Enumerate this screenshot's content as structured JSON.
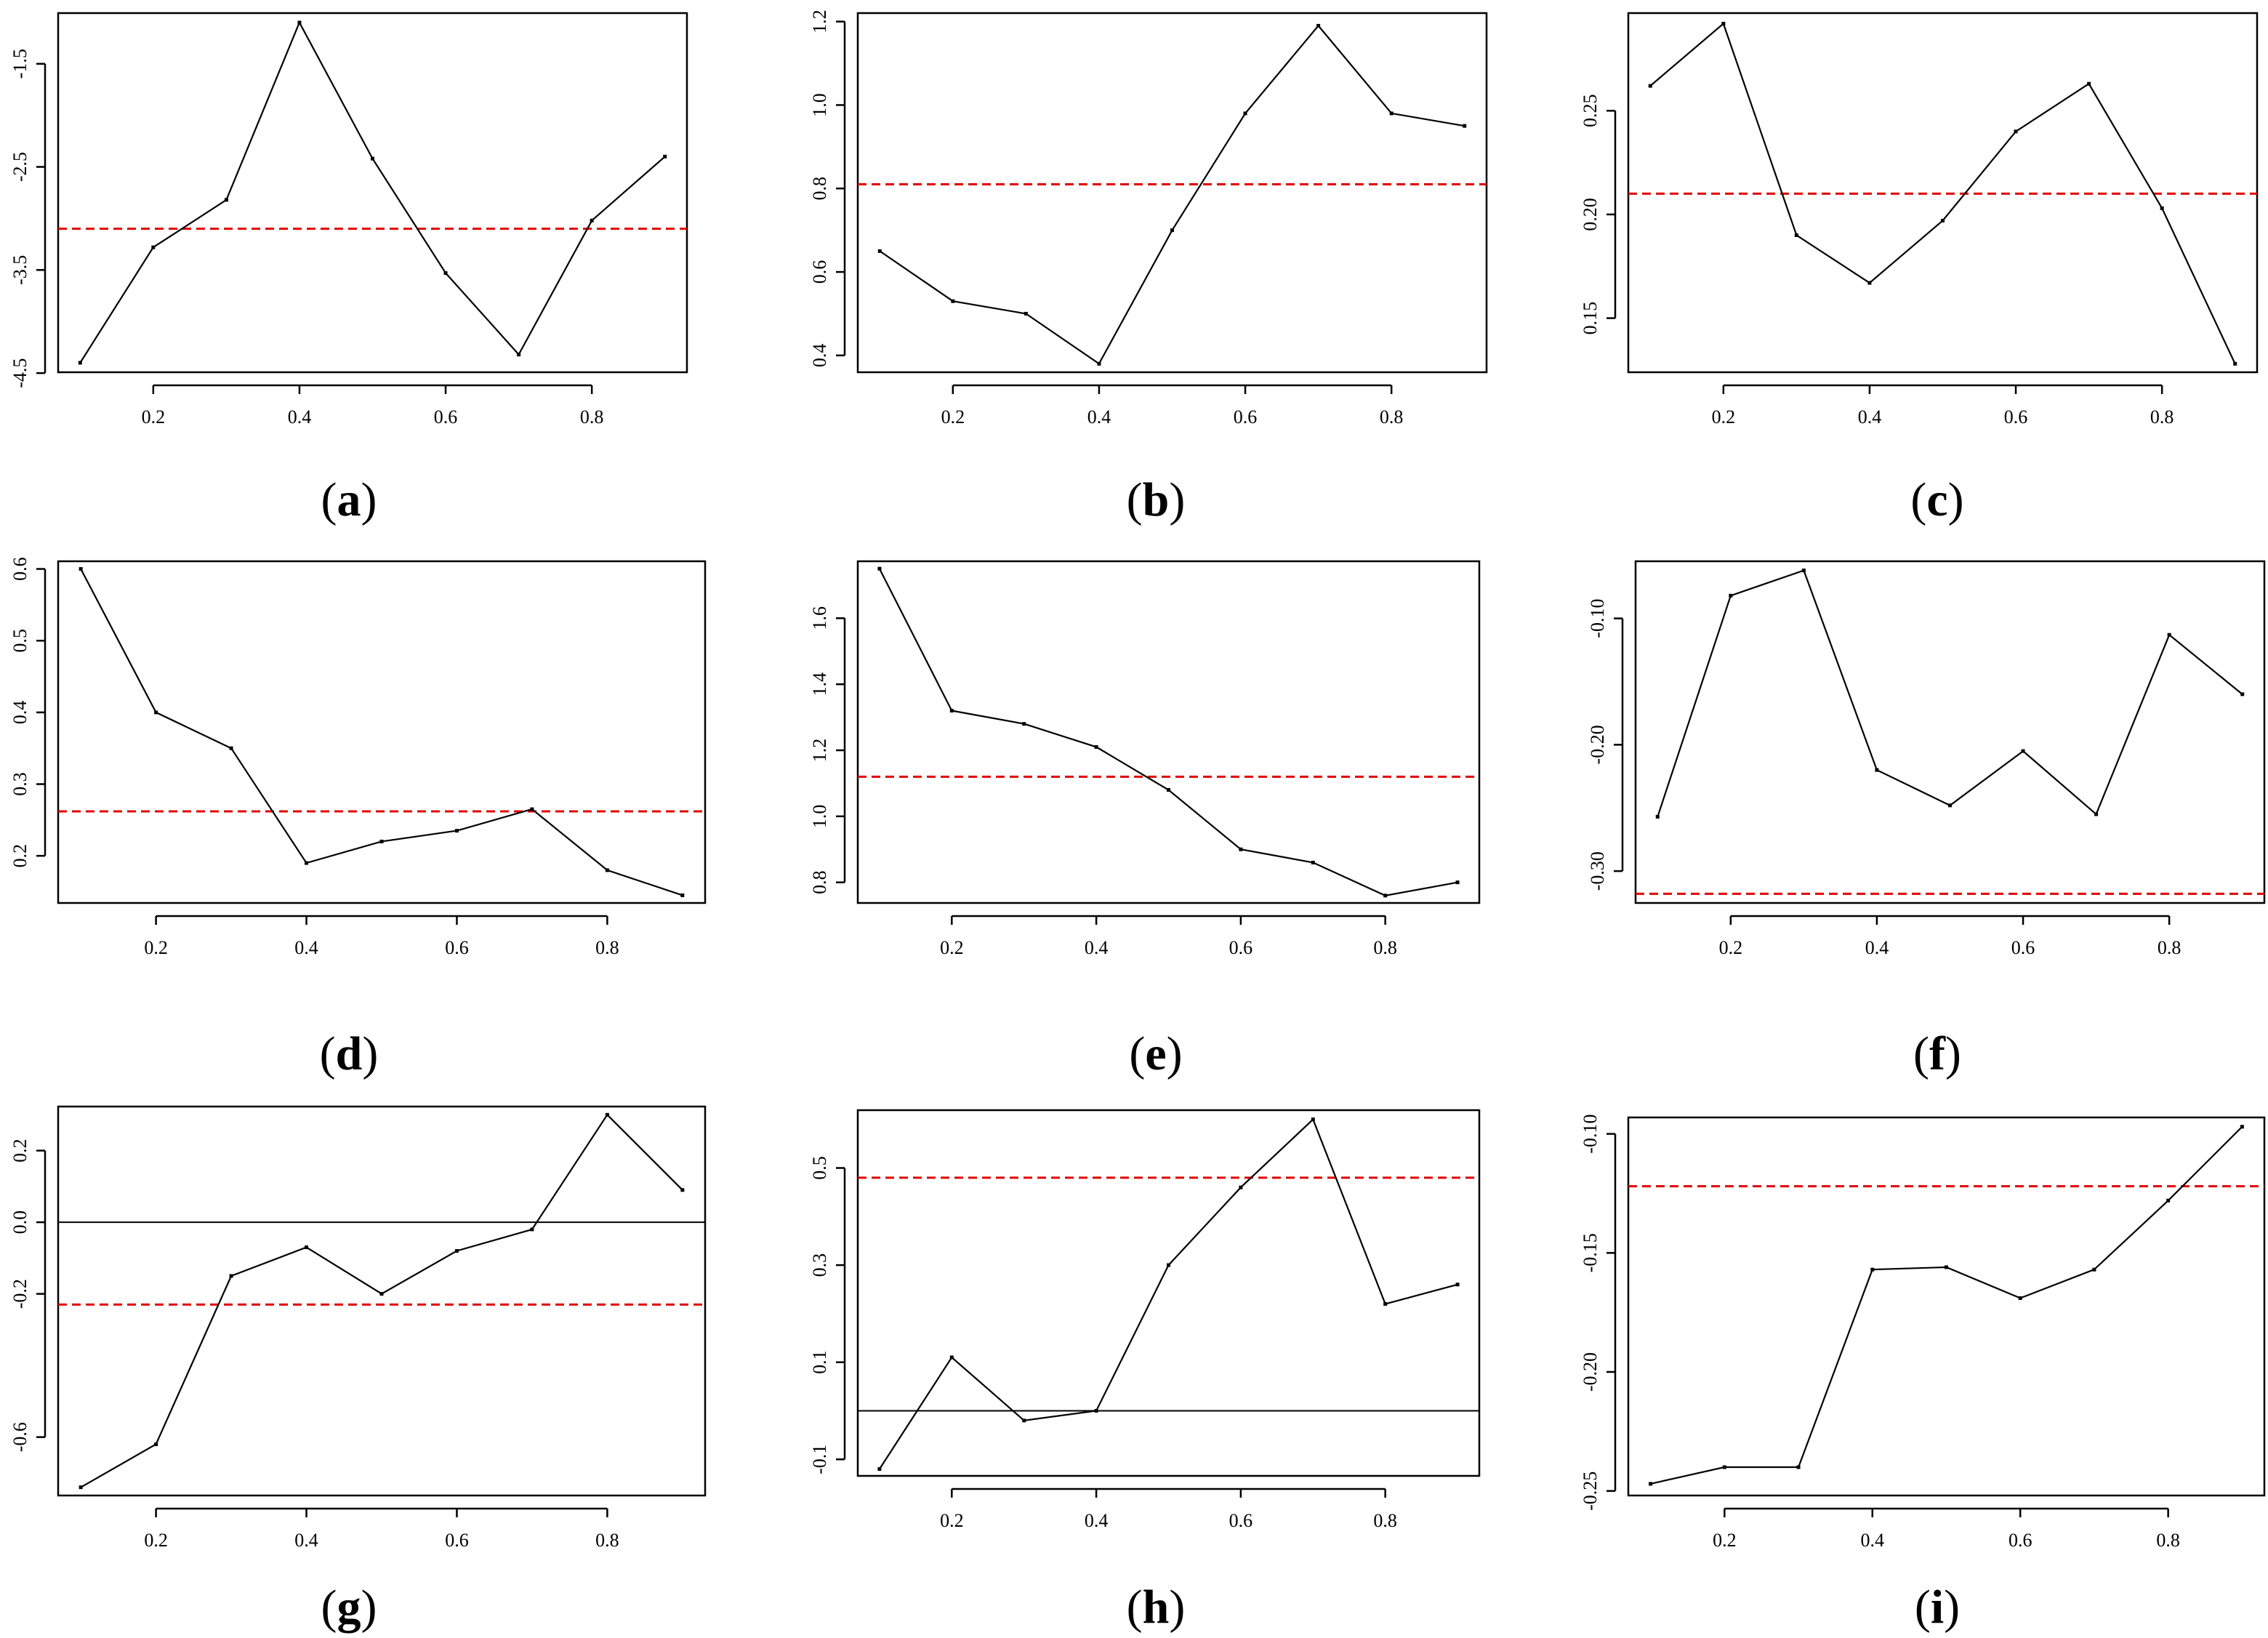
{
  "chart_data": [
    {
      "panel": "a",
      "type": "line",
      "x": [
        0.1,
        0.2,
        0.3,
        0.4,
        0.5,
        0.6,
        0.7,
        0.8,
        0.9
      ],
      "y": [
        -4.4,
        -3.28,
        -2.82,
        -1.1,
        -2.42,
        -3.53,
        -4.32,
        -3.02,
        -2.4
      ],
      "reference_line": -3.1,
      "xlim": [
        0.1,
        0.9
      ],
      "ylim": [
        -4.45,
        -1.05
      ],
      "xticks": [
        0.2,
        0.4,
        0.6,
        0.8
      ],
      "yticks": [
        -4.5,
        -3.5,
        -2.5,
        -1.5
      ],
      "xtick_labels": [
        "0.2",
        "0.4",
        "0.6",
        "0.8"
      ],
      "ytick_labels": [
        "-4.5",
        "-3.5",
        "-2.5",
        "-1.5"
      ],
      "title": "",
      "xlabel": "",
      "ylabel": ""
    },
    {
      "panel": "b",
      "type": "line",
      "x": [
        0.1,
        0.2,
        0.3,
        0.4,
        0.5,
        0.6,
        0.7,
        0.8,
        0.9
      ],
      "y": [
        0.65,
        0.53,
        0.5,
        0.38,
        0.7,
        0.98,
        1.19,
        0.98,
        0.95
      ],
      "reference_line": 0.81,
      "xlim": [
        0.1,
        0.9
      ],
      "ylim": [
        0.37,
        1.21
      ],
      "xticks": [
        0.2,
        0.4,
        0.6,
        0.8
      ],
      "yticks": [
        0.4,
        0.6,
        0.8,
        1.0,
        1.2
      ],
      "xtick_labels": [
        "0.2",
        "0.4",
        "0.6",
        "0.8"
      ],
      "ytick_labels": [
        "0.4",
        "0.6",
        "0.8",
        "1.0",
        "1.2"
      ],
      "title": "",
      "xlabel": "",
      "ylabel": ""
    },
    {
      "panel": "c",
      "type": "line",
      "x": [
        0.1,
        0.2,
        0.3,
        0.4,
        0.5,
        0.6,
        0.7,
        0.8,
        0.9
      ],
      "y": [
        0.262,
        0.292,
        0.19,
        0.167,
        0.197,
        0.24,
        0.263,
        0.203,
        0.128
      ],
      "reference_line": 0.21,
      "xlim": [
        0.1,
        0.9
      ],
      "ylim": [
        0.126,
        0.295
      ],
      "xticks": [
        0.2,
        0.4,
        0.6,
        0.8
      ],
      "yticks": [
        0.15,
        0.2,
        0.25
      ],
      "xtick_labels": [
        "0.2",
        "0.4",
        "0.6",
        "0.8"
      ],
      "ytick_labels": [
        "0.15",
        "0.20",
        "0.25"
      ],
      "title": "",
      "xlabel": "",
      "ylabel": ""
    },
    {
      "panel": "d",
      "type": "line",
      "x": [
        0.1,
        0.2,
        0.3,
        0.4,
        0.5,
        0.6,
        0.7,
        0.8,
        0.9
      ],
      "y": [
        0.6,
        0.4,
        0.35,
        0.19,
        0.22,
        0.235,
        0.265,
        0.18,
        0.145
      ],
      "reference_line": 0.262,
      "xlim": [
        0.1,
        0.9
      ],
      "ylim": [
        0.14,
        0.605
      ],
      "xticks": [
        0.2,
        0.4,
        0.6,
        0.8
      ],
      "yticks": [
        0.2,
        0.3,
        0.4,
        0.5,
        0.6
      ],
      "xtick_labels": [
        "0.2",
        "0.4",
        "0.6",
        "0.8"
      ],
      "ytick_labels": [
        "0.2",
        "0.3",
        "0.4",
        "0.5",
        "0.6"
      ],
      "title": "",
      "xlabel": "",
      "ylabel": ""
    },
    {
      "panel": "e",
      "type": "line",
      "x": [
        0.1,
        0.2,
        0.3,
        0.4,
        0.5,
        0.6,
        0.7,
        0.8,
        0.9
      ],
      "y": [
        1.75,
        1.32,
        1.28,
        1.21,
        1.08,
        0.9,
        0.86,
        0.76,
        0.8
      ],
      "reference_line": 1.12,
      "xlim": [
        0.1,
        0.9
      ],
      "ylim": [
        0.75,
        1.76
      ],
      "xticks": [
        0.2,
        0.4,
        0.6,
        0.8
      ],
      "yticks": [
        0.8,
        1.0,
        1.2,
        1.4,
        1.6
      ],
      "xtick_labels": [
        "0.2",
        "0.4",
        "0.6",
        "0.8"
      ],
      "ytick_labels": [
        "0.8",
        "1.0",
        "1.2",
        "1.4",
        "1.6"
      ],
      "title": "",
      "xlabel": "",
      "ylabel": ""
    },
    {
      "panel": "f",
      "type": "line",
      "x": [
        0.1,
        0.2,
        0.3,
        0.4,
        0.5,
        0.6,
        0.7,
        0.8,
        0.9
      ],
      "y": [
        -0.257,
        -0.082,
        -0.062,
        -0.22,
        -0.248,
        -0.205,
        -0.255,
        -0.113,
        -0.16
      ],
      "reference_line": -0.318,
      "xlim": [
        0.1,
        0.9
      ],
      "ylim": [
        -0.322,
        -0.058
      ],
      "xticks": [
        0.2,
        0.4,
        0.6,
        0.8
      ],
      "yticks": [
        -0.3,
        -0.2,
        -0.1
      ],
      "xtick_labels": [
        "0.2",
        "0.4",
        "0.6",
        "0.8"
      ],
      "ytick_labels": [
        "-0.30",
        "-0.20",
        "-0.10"
      ],
      "title": "",
      "xlabel": "",
      "ylabel": ""
    },
    {
      "panel": "g",
      "type": "line",
      "x": [
        0.1,
        0.2,
        0.3,
        0.4,
        0.5,
        0.6,
        0.7,
        0.8,
        0.9
      ],
      "y": [
        -0.74,
        -0.62,
        -0.15,
        -0.07,
        -0.2,
        -0.08,
        -0.02,
        0.3,
        0.09
      ],
      "reference_line": -0.23,
      "zero_line": 0.0,
      "xlim": [
        0.1,
        0.9
      ],
      "ylim": [
        -0.75,
        0.31
      ],
      "xticks": [
        0.2,
        0.4,
        0.6,
        0.8
      ],
      "yticks": [
        -0.6,
        -0.2,
        0.0,
        0.2
      ],
      "xtick_labels": [
        "0.2",
        "0.4",
        "0.6",
        "0.8"
      ],
      "ytick_labels": [
        "-0.6",
        "-0.2",
        "0.0",
        "0.2"
      ],
      "title": "",
      "xlabel": "",
      "ylabel": ""
    },
    {
      "panel": "h",
      "type": "line",
      "x": [
        0.1,
        0.2,
        0.3,
        0.4,
        0.5,
        0.6,
        0.7,
        0.8,
        0.9
      ],
      "y": [
        -0.12,
        0.11,
        -0.02,
        0.0,
        0.3,
        0.46,
        0.6,
        0.22,
        0.26
      ],
      "reference_line": 0.48,
      "zero_line": 0.0,
      "xlim": [
        0.1,
        0.9
      ],
      "ylim": [
        -0.125,
        0.61
      ],
      "xticks": [
        0.2,
        0.4,
        0.6,
        0.8
      ],
      "yticks": [
        -0.1,
        0.1,
        0.3,
        0.5
      ],
      "xtick_labels": [
        "0.2",
        "0.4",
        "0.6",
        "0.8"
      ],
      "ytick_labels": [
        "-0.1",
        "0.1",
        "0.3",
        "0.5"
      ],
      "title": "",
      "xlabel": "",
      "ylabel": ""
    },
    {
      "panel": "i",
      "type": "line",
      "x": [
        0.1,
        0.2,
        0.3,
        0.4,
        0.5,
        0.6,
        0.7,
        0.8,
        0.9
      ],
      "y": [
        -0.247,
        -0.24,
        -0.24,
        -0.157,
        -0.156,
        -0.169,
        -0.157,
        -0.128,
        -0.097
      ],
      "reference_line": -0.122,
      "xlim": [
        0.1,
        0.9
      ],
      "ylim": [
        -0.25,
        -0.095
      ],
      "xticks": [
        0.2,
        0.4,
        0.6,
        0.8
      ],
      "yticks": [
        -0.25,
        -0.2,
        -0.15,
        -0.1
      ],
      "xtick_labels": [
        "0.2",
        "0.4",
        "0.6",
        "0.8"
      ],
      "ytick_labels": [
        "-0.25",
        "-0.20",
        "-0.15",
        "-0.10"
      ],
      "title": "",
      "xlabel": "",
      "ylabel": ""
    }
  ],
  "captions": [
    "(a)",
    "(b)",
    "(c)",
    "(d)",
    "(e)",
    "(f)",
    "(g)",
    "(h)",
    "(i)"
  ],
  "colors": {
    "series": "#000000",
    "reference": "#e00000",
    "zero": "#000000"
  }
}
